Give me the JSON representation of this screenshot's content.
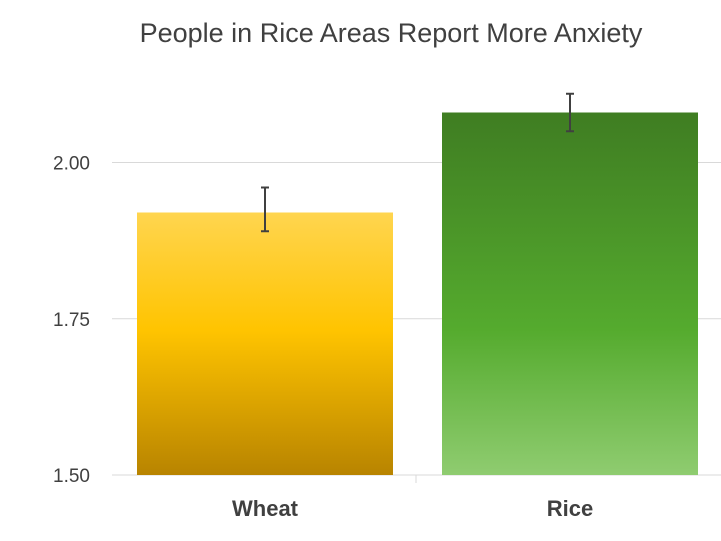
{
  "chart_data": {
    "type": "bar",
    "title": "People in Rice Areas Report More Anxiety",
    "xlabel": "",
    "ylabel": "",
    "categories": [
      "Wheat",
      "Rice"
    ],
    "values": [
      1.92,
      2.08
    ],
    "error_low": [
      1.89,
      2.05
    ],
    "error_high": [
      1.96,
      2.11
    ],
    "ylim": [
      1.5,
      2.1
    ],
    "yticks": [
      1.5,
      1.75,
      2.0
    ],
    "ytick_labels": [
      "1.50",
      "1.75",
      "2.00"
    ],
    "grid": true,
    "legend": "none",
    "colors": {
      "Wheat": {
        "top": "#ffd54f",
        "mid": "#ffc400",
        "bottom": "#b88400"
      },
      "Rice": {
        "top": "#3f7d22",
        "mid": "#55ab2e",
        "bottom": "#8fcc70"
      },
      "grid": "#d9d9d9",
      "error_bar": "#404040"
    }
  }
}
